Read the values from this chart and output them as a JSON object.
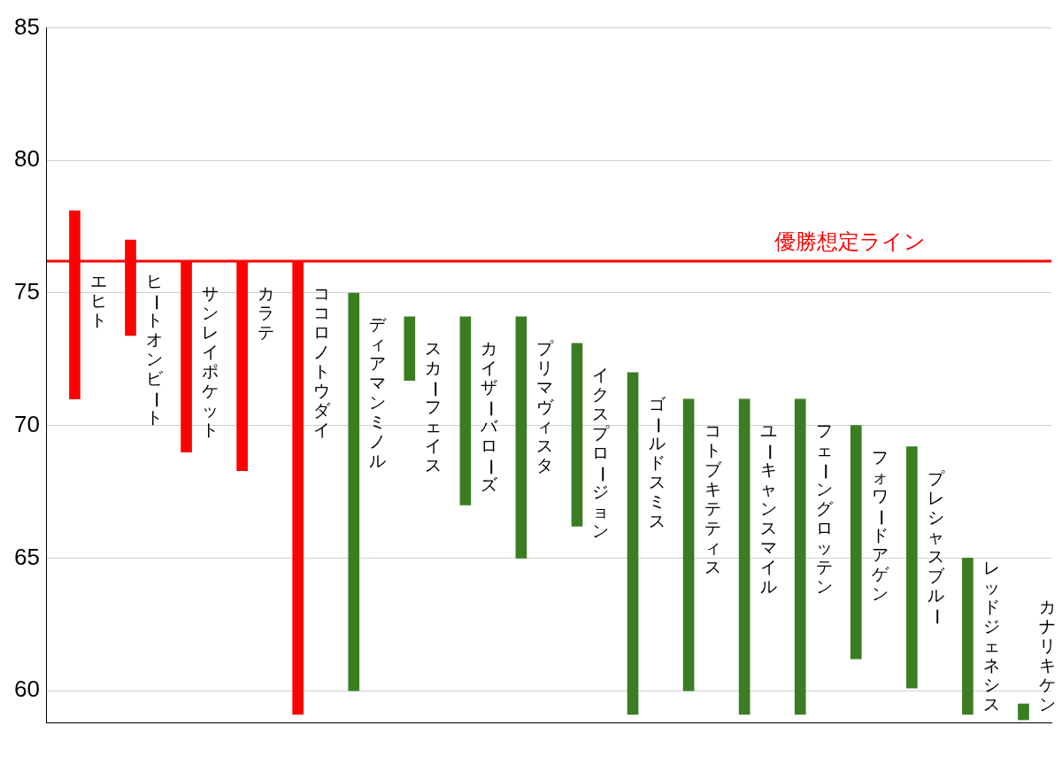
{
  "chart_data": {
    "type": "bar",
    "categories": [
      "エヒト",
      "ヒートオンビート",
      "サンレイポケット",
      "カラテ",
      "ココロノトウダイ",
      "ディアマンミノル",
      "スカーフェイス",
      "カイザーバローズ",
      "プリマヴィスタ",
      "イクスプロージョン",
      "ゴールドスミス",
      "コトブキテティス",
      "ユーキャンスマイル",
      "フェーングロッテン",
      "フォワードアゲン",
      "プレシャスブルー",
      "レッドジェネシス",
      "カナリキケン"
    ],
    "base": [
      71.0,
      73.4,
      69.0,
      68.3,
      59.1,
      60.0,
      71.7,
      67.0,
      65.0,
      66.2,
      59.1,
      60.0,
      59.1,
      59.1,
      61.2,
      60.1,
      59.1,
      58.9
    ],
    "values": [
      7.1,
      3.6,
      7.2,
      7.9,
      17.1,
      15.0,
      2.4,
      7.1,
      9.1,
      6.9,
      12.9,
      11.0,
      11.9,
      11.9,
      8.8,
      9.1,
      5.9,
      0.6
    ],
    "colors": [
      "#ff0000",
      "#ff0000",
      "#ff0000",
      "#ff0000",
      "#ff0000",
      "#3a7d22",
      "#3a7d22",
      "#3a7d22",
      "#3a7d22",
      "#3a7d22",
      "#3a7d22",
      "#3a7d22",
      "#3a7d22",
      "#3a7d22",
      "#3a7d22",
      "#3a7d22",
      "#3a7d22",
      "#3a7d22"
    ],
    "ylim": [
      58.8,
      85
    ],
    "yticks": [
      60,
      65,
      70,
      75,
      80,
      85
    ],
    "grid": "y",
    "legend": false,
    "ref_lines": [
      {
        "axis": "y",
        "value": 76.2,
        "label": "優勝想定ライン",
        "color": "#ff0000"
      }
    ]
  }
}
